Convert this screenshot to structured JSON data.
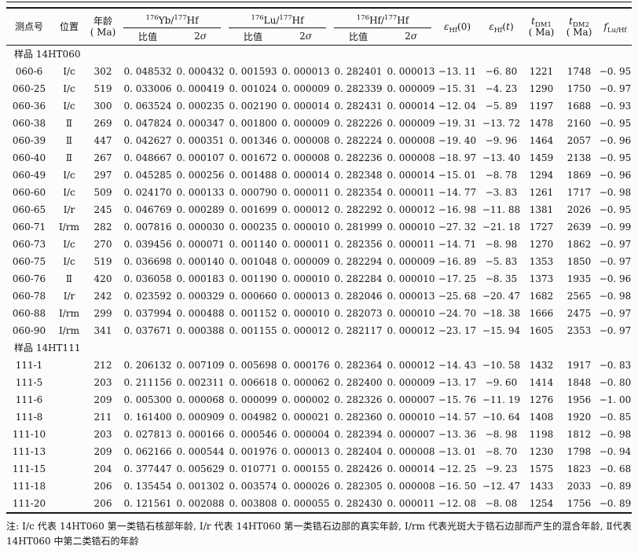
{
  "header": {
    "spot": "测点号",
    "pos": "位置",
    "age1": "年龄",
    "age2": "( Ma)",
    "ratio": "比值",
    "sigma_num": "2",
    "sigma_sym": "σ",
    "iso": [
      {
        "s1": "176",
        "t1": "Yb/",
        "s2": "177",
        "t2": "Hf"
      },
      {
        "s1": "176",
        "t1": "Lu/",
        "s2": "177",
        "t2": "Hf"
      },
      {
        "s1": "176",
        "t1": "Hf/",
        "s2": "177",
        "t2": "Hf"
      }
    ],
    "ehf0": {
      "sym": "ε",
      "sub": "Hf",
      "arg": "(0)"
    },
    "ehft": {
      "sym": "ε",
      "sub": "Hf",
      "open": "(",
      "var": "t",
      "close": ")"
    },
    "tdm1": {
      "sym": "t",
      "sub": "DM1",
      "unit": "( Ma)"
    },
    "tdm2": {
      "sym": "t",
      "sub": "DM2",
      "unit": "( Ma)"
    },
    "flu": {
      "sym": "f",
      "sub": "Lu/Hf"
    }
  },
  "table": {
    "column_keys": [
      "spot",
      "pos",
      "age",
      "yb_ratio",
      "yb_2sigma",
      "lu_ratio",
      "lu_2sigma",
      "hf_ratio",
      "hf_2sigma",
      "ehf0",
      "ehft",
      "tdm1",
      "tdm2",
      "flu_hf"
    ],
    "groups": [
      {
        "label": "样品 14HT060",
        "rows": [
          [
            "060-6",
            "Ⅰ/c",
            "302",
            "0. 048532",
            "0. 000432",
            "0. 001593",
            "0. 000013",
            "0. 282401",
            "0. 000013",
            "−13. 11",
            "−6. 80",
            "1221",
            "1748",
            "−0. 95"
          ],
          [
            "060-25",
            "Ⅰ/c",
            "519",
            "0. 033006",
            "0. 000419",
            "0. 001024",
            "0. 000009",
            "0. 282339",
            "0. 000009",
            "−15. 31",
            "−4. 23",
            "1290",
            "1750",
            "−0. 97"
          ],
          [
            "060-36",
            "Ⅰ/c",
            "300",
            "0. 063524",
            "0. 000235",
            "0. 002190",
            "0. 000014",
            "0. 282431",
            "0. 000014",
            "−12. 04",
            "−5. 89",
            "1197",
            "1688",
            "−0. 93"
          ],
          [
            "060-38",
            "Ⅱ",
            "269",
            "0. 047824",
            "0. 000347",
            "0. 001800",
            "0. 000009",
            "0. 282226",
            "0. 000009",
            "−19. 31",
            "−13. 72",
            "1478",
            "2160",
            "−0. 95"
          ],
          [
            "060-39",
            "Ⅱ",
            "447",
            "0. 042627",
            "0. 000351",
            "0. 001346",
            "0. 000008",
            "0. 282224",
            "0. 000008",
            "−19. 40",
            "−9. 96",
            "1464",
            "2057",
            "−0. 96"
          ],
          [
            "060-40",
            "Ⅱ",
            "267",
            "0. 048667",
            "0. 000107",
            "0. 001672",
            "0. 000008",
            "0. 282236",
            "0. 000008",
            "−18. 97",
            "−13. 40",
            "1459",
            "2138",
            "−0. 95"
          ],
          [
            "060-49",
            "Ⅰ/c",
            "297",
            "0. 045285",
            "0. 000256",
            "0. 001488",
            "0. 000014",
            "0. 282348",
            "0. 000014",
            "−15. 01",
            "−8. 78",
            "1294",
            "1869",
            "−0. 96"
          ],
          [
            "060-60",
            "Ⅰ/c",
            "509",
            "0. 024170",
            "0. 000133",
            "0. 000790",
            "0. 000011",
            "0. 282354",
            "0. 000011",
            "−14. 77",
            "−3. 83",
            "1261",
            "1717",
            "−0. 98"
          ],
          [
            "060-65",
            "Ⅰ/r",
            "245",
            "0. 046769",
            "0. 000289",
            "0. 001699",
            "0. 000012",
            "0. 282292",
            "0. 000012",
            "−16. 98",
            "−11. 88",
            "1381",
            "2026",
            "−0. 95"
          ],
          [
            "060-71",
            "Ⅰ/rm",
            "282",
            "0. 007816",
            "0. 000030",
            "0. 000235",
            "0. 000010",
            "0. 281999",
            "0. 000010",
            "−27. 32",
            "−21. 18",
            "1727",
            "2639",
            "−0. 99"
          ],
          [
            "060-73",
            "Ⅰ/c",
            "270",
            "0. 039456",
            "0. 000071",
            "0. 001140",
            "0. 000011",
            "0. 282356",
            "0. 000011",
            "−14. 71",
            "−8. 98",
            "1270",
            "1862",
            "−0. 97"
          ],
          [
            "060-75",
            "Ⅰ/c",
            "519",
            "0. 036698",
            "0. 000140",
            "0. 001048",
            "0. 000009",
            "0. 282294",
            "0. 000009",
            "−16. 89",
            "−5. 83",
            "1353",
            "1850",
            "−0. 97"
          ],
          [
            "060-76",
            "Ⅱ",
            "420",
            "0. 036058",
            "0. 000183",
            "0. 001190",
            "0. 000010",
            "0. 282284",
            "0. 000010",
            "−17. 25",
            "−8. 35",
            "1373",
            "1935",
            "−0. 96"
          ],
          [
            "060-78",
            "Ⅰ/r",
            "242",
            "0. 023592",
            "0. 000329",
            "0. 000660",
            "0. 000013",
            "0. 282046",
            "0. 000013",
            "−25. 68",
            "−20. 47",
            "1682",
            "2565",
            "−0. 98"
          ],
          [
            "060-88",
            "Ⅰ/rm",
            "299",
            "0. 037994",
            "0. 000488",
            "0. 001152",
            "0. 000010",
            "0. 282073",
            "0. 000010",
            "−24. 70",
            "−18. 38",
            "1666",
            "2475",
            "−0. 97"
          ],
          [
            "060-90",
            "Ⅰ/rm",
            "341",
            "0. 037671",
            "0. 000388",
            "0. 001155",
            "0. 000012",
            "0. 282117",
            "0. 000012",
            "−23. 17",
            "−15. 94",
            "1605",
            "2353",
            "−0. 97"
          ]
        ]
      },
      {
        "label": "样品 14HT111",
        "rows": [
          [
            "111-1",
            "",
            "212",
            "0. 206132",
            "0. 007109",
            "0. 005698",
            "0. 000176",
            "0. 282364",
            "0. 000012",
            "−14. 43",
            "−10. 58",
            "1432",
            "1917",
            "−0. 83"
          ],
          [
            "111-5",
            "",
            "203",
            "0. 211156",
            "0. 002311",
            "0. 006618",
            "0. 000062",
            "0. 282400",
            "0. 000009",
            "−13. 17",
            "−9. 60",
            "1414",
            "1848",
            "−0. 80"
          ],
          [
            "111-6",
            "",
            "209",
            "0. 005300",
            "0. 000068",
            "0. 000099",
            "0. 000002",
            "0. 282326",
            "0. 000007",
            "−15. 76",
            "−11. 19",
            "1276",
            "1956",
            "−1. 00"
          ],
          [
            "111-8",
            "",
            "211",
            "0. 161400",
            "0. 000909",
            "0. 004982",
            "0. 000021",
            "0. 282360",
            "0. 000010",
            "−14. 57",
            "−10. 64",
            "1408",
            "1920",
            "−0. 85"
          ],
          [
            "111-10",
            "",
            "203",
            "0. 027813",
            "0. 000166",
            "0. 000546",
            "0. 000004",
            "0. 282394",
            "0. 000007",
            "−13. 36",
            "−8. 98",
            "1198",
            "1812",
            "−0. 98"
          ],
          [
            "111-13",
            "",
            "209",
            "0. 062166",
            "0. 000544",
            "0. 001976",
            "0. 000013",
            "0. 282404",
            "0. 000008",
            "−13. 01",
            "−8. 70",
            "1230",
            "1798",
            "−0. 94"
          ],
          [
            "111-15",
            "",
            "204",
            "0. 377447",
            "0. 005629",
            "0. 010771",
            "0. 000155",
            "0. 282426",
            "0. 000014",
            "−12. 25",
            "−9. 23",
            "1575",
            "1823",
            "−0. 68"
          ],
          [
            "111-18",
            "",
            "206",
            "0. 135454",
            "0. 001302",
            "0. 003574",
            "0. 000026",
            "0. 282305",
            "0. 000008",
            "−16. 50",
            "−12. 47",
            "1433",
            "2033",
            "−0. 89"
          ],
          [
            "111-20",
            "",
            "206",
            "0. 121561",
            "0. 002088",
            "0. 003808",
            "0. 000055",
            "0. 282430",
            "0. 000011",
            "−12. 08",
            "−8. 08",
            "1254",
            "1756",
            "−0. 89"
          ]
        ]
      }
    ]
  },
  "note": {
    "text": "注: Ⅰ/c 代表 14HT060 第一类锆石核部年龄, Ⅰ/r 代表 14HT060 第一类锆石边部的真实年龄, Ⅰ/rm 代表光斑大于锆石边部而产生的混合年龄, Ⅱ代表 14HT060 中第二类锆石的年龄"
  }
}
